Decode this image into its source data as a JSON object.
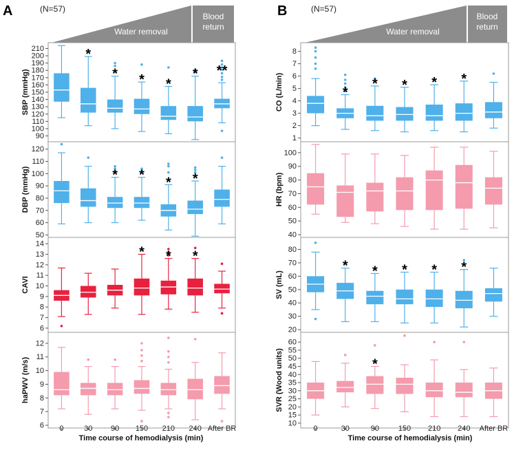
{
  "colors": {
    "blue": "#4fb0ea",
    "red": "#e8213f",
    "pink": "#f49bad",
    "header_gray": "#8c8c8c",
    "frame": "#999999",
    "median": "#ffffff"
  },
  "panels": {
    "A": {
      "label": "A",
      "n_label": "(N=57)",
      "header": {
        "removal": "Water removal",
        "return_line1": "Blood",
        "return_line2": "return"
      },
      "xlabel": "Time course of hemodialysis (min)",
      "xticks": [
        "0",
        "30",
        "90",
        "150",
        "210",
        "240",
        "After BR"
      ]
    },
    "B": {
      "label": "B",
      "n_label": "(N=57)",
      "header": {
        "removal": "Water removal",
        "return_line1": "Blood",
        "return_line2": "return"
      },
      "xlabel": "Time course of hemodialysis (min)",
      "xticks": [
        "0",
        "30",
        "90",
        "150",
        "210",
        "240",
        "After BR"
      ]
    }
  },
  "chart_data": [
    {
      "id": "sbp",
      "type": "box",
      "panel": "A",
      "color": "blue",
      "ylabel": "SBP (mmHg)",
      "ylim": [
        82,
        218
      ],
      "yticks": [
        90,
        100,
        110,
        120,
        130,
        140,
        150,
        160,
        170,
        180,
        190,
        200,
        210
      ],
      "categories": [
        "0",
        "30",
        "90",
        "150",
        "210",
        "240",
        "After BR"
      ],
      "boxes": [
        {
          "whislo": 115,
          "q1": 137,
          "med": 153,
          "q3": 176,
          "whishi": 214,
          "fliers": []
        },
        {
          "whislo": 104,
          "q1": 122,
          "med": 134,
          "q3": 156,
          "whishi": 199,
          "fliers": []
        },
        {
          "whislo": 100,
          "q1": 122,
          "med": 128,
          "q3": 140,
          "whishi": 172,
          "fliers": [
            186,
            190
          ]
        },
        {
          "whislo": 96,
          "q1": 120,
          "med": 127,
          "q3": 141,
          "whishi": 164,
          "fliers": [
            188
          ]
        },
        {
          "whislo": 93,
          "q1": 112,
          "med": 117,
          "q3": 131,
          "whishi": 158,
          "fliers": [
            184
          ]
        },
        {
          "whislo": 85,
          "q1": 110,
          "med": 116,
          "q3": 131,
          "whishi": 172,
          "fliers": [
            178,
            181
          ]
        },
        {
          "whislo": 108,
          "q1": 128,
          "med": 134,
          "q3": 141,
          "whishi": 163,
          "fliers": [
            167,
            171,
            176,
            181,
            188,
            193,
            97
          ]
        }
      ],
      "significance": [
        "",
        "*",
        "*",
        "*",
        "*",
        "*",
        "**"
      ]
    },
    {
      "id": "dbp",
      "type": "box",
      "panel": "A",
      "color": "blue",
      "ylabel": "DBP (mmHg)",
      "ylim": [
        48,
        126
      ],
      "yticks": [
        50,
        60,
        70,
        80,
        90,
        100,
        110,
        120
      ],
      "categories": [
        "0",
        "30",
        "90",
        "150",
        "210",
        "240",
        "After BR"
      ],
      "boxes": [
        {
          "whislo": 59,
          "q1": 76,
          "med": 86,
          "q3": 94,
          "whishi": 117,
          "fliers": [
            124
          ]
        },
        {
          "whislo": 60,
          "q1": 73,
          "med": 78,
          "q3": 88,
          "whishi": 106,
          "fliers": [
            113
          ]
        },
        {
          "whislo": 60,
          "q1": 72,
          "med": 76,
          "q3": 81,
          "whishi": 97,
          "fliers": [
            102,
            104,
            106
          ]
        },
        {
          "whislo": 62,
          "q1": 72,
          "med": 76,
          "q3": 81,
          "whishi": 97,
          "fliers": [
            102,
            104
          ]
        },
        {
          "whislo": 54,
          "q1": 65,
          "med": 70,
          "q3": 75,
          "whishi": 91,
          "fliers": [
            101,
            106,
            108
          ]
        },
        {
          "whislo": 49,
          "q1": 67,
          "med": 71,
          "q3": 78,
          "whishi": 94,
          "fliers": [
            101,
            103,
            105
          ]
        },
        {
          "whislo": 59,
          "q1": 73,
          "med": 79,
          "q3": 87,
          "whishi": 106,
          "fliers": [
            113
          ]
        }
      ],
      "significance": [
        "",
        "",
        "*",
        "*",
        "*",
        "*",
        ""
      ]
    },
    {
      "id": "cavi",
      "type": "box",
      "panel": "A",
      "color": "red",
      "ylabel": "CAVI",
      "ylim": [
        5.6,
        14.6
      ],
      "yticks": [
        6,
        7,
        8,
        9,
        10,
        11,
        12,
        13,
        14
      ],
      "categories": [
        "0",
        "30",
        "90",
        "150",
        "210",
        "240",
        "After BR"
      ],
      "boxes": [
        {
          "whislo": 7.1,
          "q1": 8.6,
          "med": 9.1,
          "q3": 9.6,
          "whishi": 11.7,
          "fliers": [
            6.2
          ]
        },
        {
          "whislo": 7.3,
          "q1": 8.9,
          "med": 9.4,
          "q3": 10.0,
          "whishi": 11.2,
          "fliers": []
        },
        {
          "whislo": 7.9,
          "q1": 9.1,
          "med": 9.6,
          "q3": 10.1,
          "whishi": 11.6,
          "fliers": []
        },
        {
          "whislo": 7.3,
          "q1": 9.1,
          "med": 9.8,
          "q3": 10.7,
          "whishi": 13.0,
          "fliers": []
        },
        {
          "whislo": 7.8,
          "q1": 9.2,
          "med": 9.9,
          "q3": 10.5,
          "whishi": 12.6,
          "fliers": [
            12.9,
            13.2,
            13.5
          ]
        },
        {
          "whislo": 7.5,
          "q1": 9.1,
          "med": 9.8,
          "q3": 10.7,
          "whishi": 12.6,
          "fliers": [
            13.6
          ]
        },
        {
          "whislo": 7.9,
          "q1": 9.3,
          "med": 9.7,
          "q3": 10.2,
          "whishi": 11.4,
          "fliers": [
            12.1,
            7.4,
            7.4
          ]
        }
      ],
      "significance": [
        "",
        "",
        "",
        "*",
        "*",
        "*",
        ""
      ]
    },
    {
      "id": "hapwv",
      "type": "box",
      "panel": "A",
      "color": "pink",
      "ylabel": "haPWV (m/s)",
      "ylim": [
        5.8,
        12.8
      ],
      "yticks": [
        6,
        7,
        8,
        9,
        10,
        11,
        12
      ],
      "categories": [
        "0",
        "30",
        "90",
        "150",
        "210",
        "240",
        "After BR"
      ],
      "boxes": [
        {
          "whislo": 7.2,
          "q1": 8.2,
          "med": 8.6,
          "q3": 9.9,
          "whishi": 11.7,
          "fliers": []
        },
        {
          "whislo": 6.8,
          "q1": 8.2,
          "med": 8.7,
          "q3": 9.1,
          "whishi": 10.3,
          "fliers": [
            10.8
          ]
        },
        {
          "whislo": 7.2,
          "q1": 8.2,
          "med": 8.6,
          "q3": 9.1,
          "whishi": 10.3,
          "fliers": [
            10.8
          ]
        },
        {
          "whislo": 7.1,
          "q1": 8.3,
          "med": 8.7,
          "q3": 9.3,
          "whishi": 10.3,
          "fliers": [
            10.7,
            11.1,
            11.5,
            12.0,
            6.3
          ]
        },
        {
          "whislo": 7.2,
          "q1": 8.2,
          "med": 8.6,
          "q3": 9.1,
          "whishi": 10.1,
          "fliers": [
            10.6,
            11.0,
            11.4,
            12.4,
            6.9,
            6.6
          ]
        },
        {
          "whislo": 6.4,
          "q1": 7.9,
          "med": 8.6,
          "q3": 9.4,
          "whishi": 10.6,
          "fliers": [
            12.3
          ]
        },
        {
          "whislo": 7.2,
          "q1": 8.3,
          "med": 8.9,
          "q3": 9.6,
          "whishi": 11.3,
          "fliers": [
            6.3
          ]
        }
      ],
      "significance": [
        "",
        "",
        "",
        "",
        "",
        "",
        ""
      ]
    },
    {
      "id": "co",
      "type": "box",
      "panel": "B",
      "color": "blue",
      "ylabel": "CO (L/min)",
      "ylim": [
        0.7,
        8.7
      ],
      "yticks": [
        1,
        2,
        3,
        4,
        5,
        6,
        7,
        8
      ],
      "categories": [
        "0",
        "30",
        "90",
        "150",
        "210",
        "240",
        "After BR"
      ],
      "boxes": [
        {
          "whislo": 2.0,
          "q1": 3.0,
          "med": 3.8,
          "q3": 4.4,
          "whishi": 5.8,
          "fliers": [
            6.6,
            7.0,
            7.5,
            8.0,
            8.3
          ]
        },
        {
          "whislo": 1.7,
          "q1": 2.6,
          "med": 3.0,
          "q3": 3.4,
          "whishi": 4.5,
          "fliers": [
            4.8,
            5.1,
            5.4,
            5.7,
            6.1
          ]
        },
        {
          "whislo": 1.6,
          "q1": 2.4,
          "med": 2.8,
          "q3": 3.6,
          "whishi": 5.2,
          "fliers": [
            5.8
          ]
        },
        {
          "whislo": 1.5,
          "q1": 2.4,
          "med": 2.9,
          "q3": 3.5,
          "whishi": 5.1,
          "fliers": []
        },
        {
          "whislo": 1.6,
          "q1": 2.4,
          "med": 2.8,
          "q3": 3.7,
          "whishi": 5.3,
          "fliers": []
        },
        {
          "whislo": 1.5,
          "q1": 2.4,
          "med": 3.0,
          "q3": 3.8,
          "whishi": 5.6,
          "fliers": []
        },
        {
          "whislo": 1.8,
          "q1": 2.6,
          "med": 3.1,
          "q3": 3.9,
          "whishi": 5.5,
          "fliers": [
            6.2
          ]
        }
      ],
      "significance": [
        "",
        "*",
        "*",
        "*",
        "*",
        "*",
        ""
      ]
    },
    {
      "id": "hr",
      "type": "box",
      "panel": "B",
      "color": "pink",
      "ylabel": "HR (bpm)",
      "ylim": [
        38,
        108
      ],
      "yticks": [
        40,
        50,
        60,
        70,
        80,
        90,
        100
      ],
      "categories": [
        "0",
        "30",
        "90",
        "150",
        "210",
        "240",
        "After BR"
      ],
      "boxes": [
        {
          "whislo": 55,
          "q1": 62,
          "med": 75,
          "q3": 85,
          "whishi": 106,
          "fliers": []
        },
        {
          "whislo": 49,
          "q1": 53,
          "med": 71,
          "q3": 76,
          "whishi": 99,
          "fliers": []
        },
        {
          "whislo": 48,
          "q1": 57,
          "med": 72,
          "q3": 78,
          "whishi": 99,
          "fliers": []
        },
        {
          "whislo": 46,
          "q1": 58,
          "med": 72,
          "q3": 82,
          "whishi": 98,
          "fliers": []
        },
        {
          "whislo": 44,
          "q1": 58,
          "med": 80,
          "q3": 87,
          "whishi": 104,
          "fliers": []
        },
        {
          "whislo": 44,
          "q1": 59,
          "med": 78,
          "q3": 91,
          "whishi": 104,
          "fliers": []
        },
        {
          "whislo": 45,
          "q1": 62,
          "med": 74,
          "q3": 82,
          "whishi": 101,
          "fliers": []
        }
      ],
      "significance": [
        "",
        "",
        "",
        "",
        "",
        "",
        ""
      ]
    },
    {
      "id": "sv",
      "type": "box",
      "panel": "B",
      "color": "blue",
      "ylabel": "SV (mL)",
      "ylim": [
        18,
        89
      ],
      "yticks": [
        20,
        30,
        40,
        50,
        60,
        70,
        80
      ],
      "categories": [
        "0",
        "30",
        "90",
        "150",
        "210",
        "240",
        "After BR"
      ],
      "boxes": [
        {
          "whislo": 35,
          "q1": 48,
          "med": 54,
          "q3": 60,
          "whishi": 78,
          "fliers": [
            85,
            28
          ]
        },
        {
          "whislo": 26,
          "q1": 43,
          "med": 49,
          "q3": 55,
          "whishi": 66,
          "fliers": []
        },
        {
          "whislo": 26,
          "q1": 39,
          "med": 45,
          "q3": 49,
          "whishi": 62,
          "fliers": []
        },
        {
          "whislo": 25,
          "q1": 39,
          "med": 43,
          "q3": 50,
          "whishi": 63,
          "fliers": []
        },
        {
          "whislo": 25,
          "q1": 37,
          "med": 43,
          "q3": 50,
          "whishi": 63,
          "fliers": []
        },
        {
          "whislo": 22,
          "q1": 36,
          "med": 42,
          "q3": 49,
          "whishi": 65,
          "fliers": [
            72
          ]
        },
        {
          "whislo": 30,
          "q1": 41,
          "med": 47,
          "q3": 51,
          "whishi": 66,
          "fliers": []
        }
      ],
      "significance": [
        "",
        "*",
        "*",
        "*",
        "*",
        "*",
        ""
      ]
    },
    {
      "id": "svr",
      "type": "box",
      "panel": "B",
      "color": "pink",
      "ylabel": "SVR (Wood units)",
      "ylim": [
        7,
        66
      ],
      "yticks": [
        10,
        15,
        20,
        25,
        30,
        35,
        40,
        45,
        50,
        55,
        60
      ],
      "categories": [
        "0",
        "30",
        "90",
        "150",
        "210",
        "240",
        "After BR"
      ],
      "boxes": [
        {
          "whislo": 15,
          "q1": 25,
          "med": 30,
          "q3": 35,
          "whishi": 48,
          "fliers": []
        },
        {
          "whislo": 20,
          "q1": 29,
          "med": 32,
          "q3": 36,
          "whishi": 47,
          "fliers": [
            52
          ]
        },
        {
          "whislo": 19,
          "q1": 28,
          "med": 34,
          "q3": 39,
          "whishi": 45,
          "fliers": [
            58
          ]
        },
        {
          "whislo": 17,
          "q1": 28,
          "med": 34,
          "q3": 38,
          "whishi": 46,
          "fliers": [
            64
          ]
        },
        {
          "whislo": 14,
          "q1": 26,
          "med": 30,
          "q3": 35,
          "whishi": 49,
          "fliers": [
            60
          ]
        },
        {
          "whislo": 14,
          "q1": 26,
          "med": 29,
          "q3": 35,
          "whishi": 43,
          "fliers": [
            60
          ]
        },
        {
          "whislo": 14,
          "q1": 25,
          "med": 30,
          "q3": 35,
          "whishi": 44,
          "fliers": []
        }
      ],
      "significance": [
        "",
        "",
        "*",
        "",
        "",
        "",
        ""
      ]
    }
  ]
}
